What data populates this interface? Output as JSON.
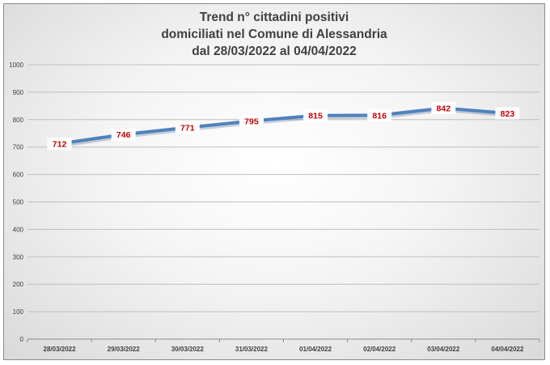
{
  "chart_data": {
    "type": "line",
    "title": [
      "Trend n° cittadini positivi",
      "domiciliati nel Comune di Alessandria",
      "dal 28/03/2022 al 04/04/2022"
    ],
    "categories": [
      "28/03/2022",
      "29/03/2022",
      "30/03/2022",
      "31/03/2022",
      "01/04/2022",
      "02/04/2022",
      "03/04/2022",
      "04/04/2022"
    ],
    "series": [
      {
        "values": [
          712,
          746,
          771,
          795,
          815,
          816,
          842,
          823
        ]
      }
    ],
    "data_labels": [
      "712",
      "746",
      "771",
      "795",
      "815",
      "816",
      "842",
      "823"
    ],
    "ylim": [
      0,
      1000
    ],
    "yticks": [
      "0",
      "100",
      "200",
      "300",
      "400",
      "500",
      "600",
      "700",
      "800",
      "900",
      "1000"
    ],
    "xlabel": "",
    "ylabel": "",
    "grid": true,
    "legend": "none",
    "colors": {
      "line": "#4f81bd",
      "label_text": "#c00000",
      "grid": "#bfbfbf",
      "text": "#404040"
    }
  }
}
